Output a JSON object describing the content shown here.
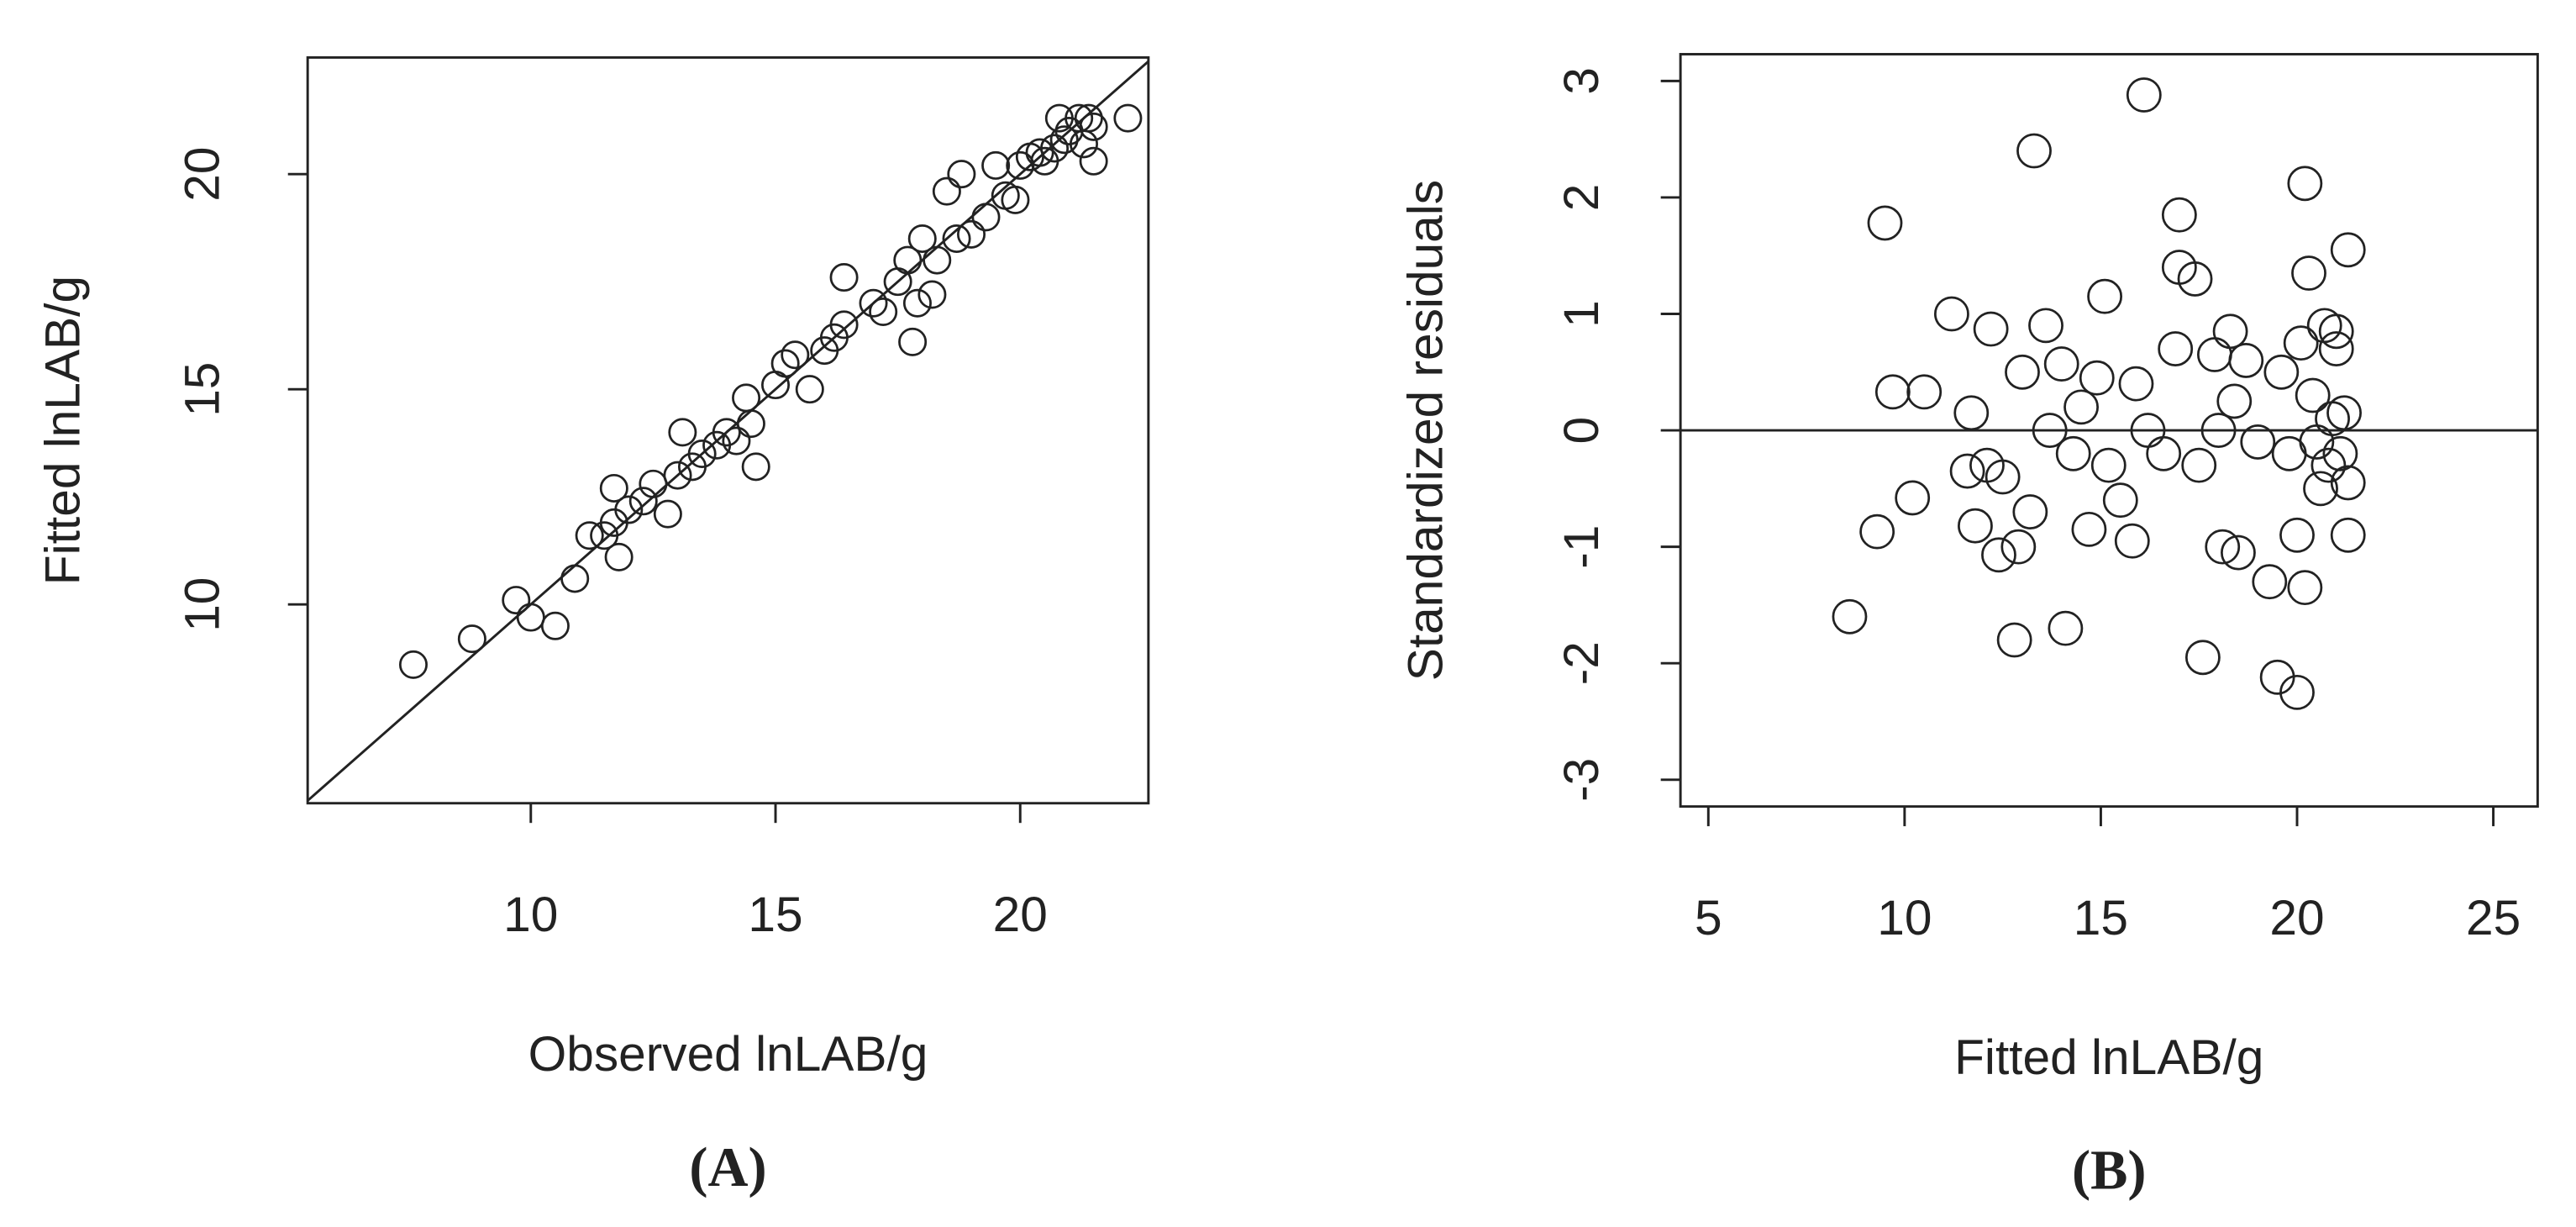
{
  "chart_data": [
    {
      "type": "scatter",
      "x_label": "Observed lnLAB/g",
      "y_label": "Fitted lnLAB/g",
      "panel_label": "(A)",
      "x": [
        7.6,
        8.8,
        9.7,
        10,
        10.5,
        10.9,
        11.2,
        11.5,
        11.7,
        11.8,
        11.7,
        12,
        12.3,
        12.5,
        12.8,
        13,
        13.1,
        13.3,
        13.5,
        13.8,
        14,
        14.2,
        14.4,
        14.6,
        14.5,
        15,
        15.2,
        15.4,
        15.7,
        16,
        16.2,
        16.4,
        16.4,
        17,
        17.2,
        17.5,
        17.7,
        17.8,
        17.9,
        18,
        18.2,
        18.3,
        18.5,
        18.7,
        18.8,
        19,
        19.3,
        19.5,
        19.7,
        20,
        20.2,
        20.4,
        20.5,
        20.7,
        20.8,
        20.9,
        21,
        21.2,
        21.3,
        21.4,
        21.5,
        21.5,
        22.2,
        19.9
      ],
      "y": [
        8.6,
        9.2,
        10.1,
        9.7,
        9.5,
        10.6,
        11.6,
        11.6,
        12.7,
        11.1,
        11.9,
        12.2,
        12.4,
        12.8,
        12.1,
        13,
        14,
        13.2,
        13.5,
        13.7,
        14,
        13.8,
        14.8,
        13.2,
        14.2,
        15.1,
        15.6,
        15.8,
        15,
        15.9,
        16.2,
        16.5,
        17.6,
        17,
        16.8,
        17.5,
        18,
        16.1,
        17,
        18.5,
        17.2,
        18,
        19.6,
        18.5,
        20,
        18.6,
        19,
        20.2,
        19.5,
        20.2,
        20.4,
        20.5,
        20.3,
        20.6,
        21.3,
        20.8,
        21,
        21.3,
        20.7,
        21.3,
        20.3,
        21.1,
        21.3,
        19.4
      ],
      "xlim": [
        5.44,
        22.62
      ],
      "ylim": [
        5.38,
        22.71
      ],
      "xticks": [
        10,
        15,
        20
      ],
      "yticks": [
        10,
        15,
        20
      ],
      "abline": {
        "intercept": 0,
        "slope": 1
      }
    },
    {
      "type": "scatter",
      "x_label": "Fitted lnLAB/g",
      "y_label": "Standardized residuals",
      "panel_label": "(B)",
      "x": [
        8.6,
        9.3,
        9.5,
        9.7,
        10.2,
        10.5,
        11.2,
        11.6,
        11.7,
        11.8,
        12.1,
        12.2,
        12.4,
        12.5,
        12.8,
        12.9,
        13,
        13.3,
        13.2,
        13.6,
        13.7,
        14,
        14.1,
        14.3,
        14.5,
        14.7,
        14.9,
        15.1,
        15.2,
        15.5,
        15.8,
        15.9,
        16.1,
        16.2,
        16.6,
        16.9,
        17,
        17,
        17.4,
        17.6,
        17.5,
        17.9,
        18,
        18.1,
        18.3,
        18.4,
        18.5,
        18.7,
        19,
        19.3,
        19.5,
        19.6,
        19.8,
        20,
        20,
        20.1,
        20.2,
        20.2,
        20.3,
        20.4,
        20.5,
        20.6,
        20.7,
        20.8,
        20.9,
        21,
        21,
        21.1,
        21.2,
        21.3,
        21.3,
        21.3
      ],
      "y": [
        -1.6,
        -0.87,
        1.78,
        0.33,
        -0.58,
        0.33,
        1,
        -0.35,
        0.15,
        -0.82,
        -0.3,
        0.87,
        -1.07,
        -0.4,
        -1.8,
        -1,
        0.5,
        2.4,
        -0.7,
        0.9,
        0,
        0.57,
        -1.7,
        -0.2,
        0.2,
        -0.85,
        0.45,
        1.15,
        -0.3,
        -0.6,
        -0.95,
        0.4,
        2.88,
        0,
        -0.2,
        0.7,
        1.85,
        1.4,
        1.3,
        -1.95,
        -0.3,
        0.65,
        0,
        -1,
        0.85,
        0.25,
        -1.05,
        0.6,
        -0.1,
        -1.3,
        -2.12,
        0.5,
        -0.2,
        -2.25,
        -0.9,
        0.75,
        2.12,
        -1.35,
        1.35,
        0.3,
        -0.1,
        -0.5,
        0.9,
        -0.3,
        0.1,
        0.85,
        0.7,
        -0.2,
        0.15,
        1.55,
        -0.9,
        -0.45
      ],
      "xlim": [
        4.29,
        26.13
      ],
      "ylim": [
        -3.23,
        3.23
      ],
      "xticks": [
        5,
        10,
        15,
        20,
        25
      ],
      "yticks": [
        -3,
        -2,
        -1,
        0,
        1,
        2,
        3
      ],
      "abline": {
        "intercept": 0,
        "slope": 0
      }
    }
  ]
}
